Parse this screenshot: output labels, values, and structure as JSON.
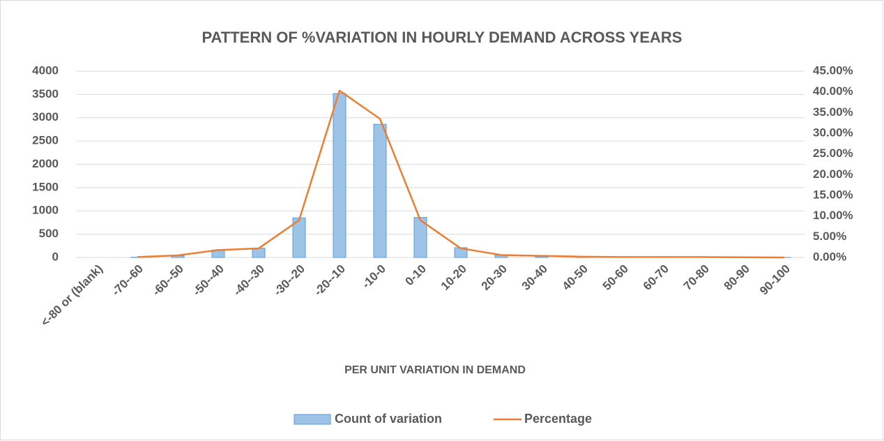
{
  "chart_data": {
    "type": "bar+line",
    "title": "PATTERN OF %VARIATION IN HOURLY  DEMAND ACROSS YEARS",
    "x_label": "PER UNIT VARIATION IN DEMAND",
    "categories": [
      "<-80 or (blank)",
      "-70--60",
      "-60--50",
      "-50--40",
      "-40--30",
      "-30--20",
      "-20--10",
      "-10-0",
      "0-10",
      "10-20",
      "20-30",
      "30-40",
      "40-50",
      "50-60",
      "60-70",
      "70-80",
      "80-90",
      "90-100"
    ],
    "series": [
      {
        "name": "Count of variation",
        "type": "bar",
        "color": "#9dc3e6",
        "values": [
          null,
          5,
          40,
          160,
          200,
          850,
          3520,
          2860,
          860,
          210,
          50,
          30,
          15,
          10,
          10,
          8,
          3,
          2
        ]
      },
      {
        "name": "Percentage",
        "type": "line",
        "axis": "y2",
        "color": "#ed7d31",
        "values": [
          null,
          0.1,
          0.5,
          1.8,
          2.2,
          9.0,
          40.3,
          33.5,
          9.0,
          2.2,
          0.6,
          0.4,
          0.2,
          0.1,
          0.1,
          0.1,
          0.05,
          0.0
        ]
      }
    ],
    "ylim": [
      0,
      4000
    ],
    "yticks": [
      0,
      500,
      1000,
      1500,
      2000,
      2500,
      3000,
      3500,
      4000
    ],
    "y2lim": [
      0,
      45
    ],
    "y2ticks": [
      {
        "value": 0,
        "label": "0.00%"
      },
      {
        "value": 5,
        "label": "5.00%"
      },
      {
        "value": 10,
        "label": "10.00%"
      },
      {
        "value": 15,
        "label": "15.00%"
      },
      {
        "value": 20,
        "label": "20.00%"
      },
      {
        "value": 25,
        "label": "25.00%"
      },
      {
        "value": 30,
        "label": "30.00%"
      },
      {
        "value": 35,
        "label": "35.00%"
      },
      {
        "value": 40,
        "label": "40.00%"
      },
      {
        "value": 45,
        "label": "45.00%"
      }
    ],
    "grid": true,
    "legend": "bottom"
  }
}
